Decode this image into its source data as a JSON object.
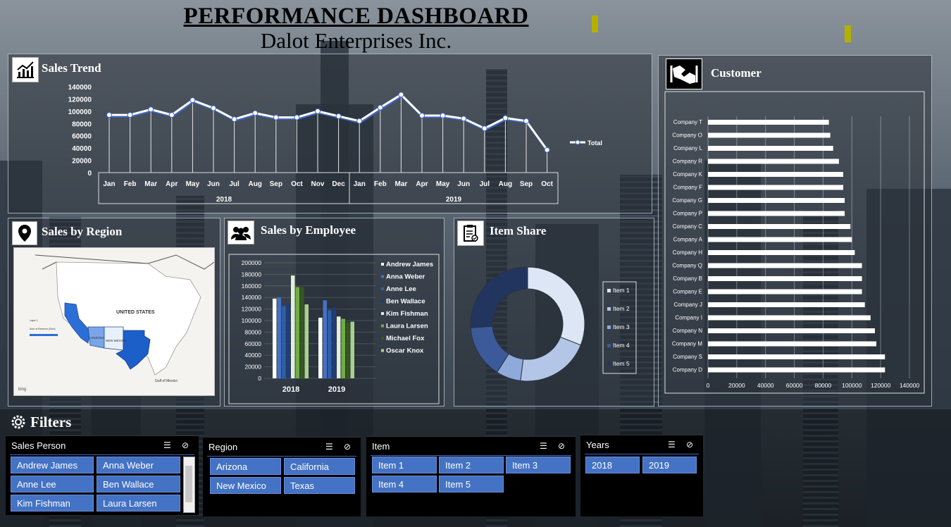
{
  "header": {
    "title": "PERFORMANCE DASHBOARD",
    "subtitle": "Dalot Enterprises Inc."
  },
  "sales_trend": {
    "title": "Sales Trend",
    "legend": "Total",
    "years": [
      "2018",
      "2019"
    ],
    "chart_data": {
      "type": "line",
      "categories": [
        "Jan",
        "Feb",
        "Mar",
        "Apr",
        "May",
        "Jun",
        "Jul",
        "Aug",
        "Sep",
        "Oct",
        "Nov",
        "Dec",
        "Jan",
        "Feb",
        "Mar",
        "Apr",
        "May",
        "Jun",
        "Jul",
        "Aug",
        "Sep",
        "Oct"
      ],
      "series": [
        {
          "name": "Total",
          "values": [
            94000,
            94000,
            103000,
            94000,
            118000,
            105000,
            87000,
            97000,
            90000,
            90000,
            100000,
            92000,
            84000,
            106000,
            127000,
            93000,
            93000,
            88000,
            72000,
            89000,
            84000,
            37000
          ]
        }
      ],
      "ylim": [
        0,
        140000
      ],
      "yticks": [
        "0",
        "20000",
        "40000",
        "60000",
        "80000",
        "100000",
        "120000",
        "140000"
      ]
    }
  },
  "customer": {
    "title": "Customer",
    "chart_data": {
      "type": "bar",
      "orientation": "horizontal",
      "categories": [
        "Company T",
        "Company O",
        "Company L",
        "Company R",
        "Company K",
        "Company F",
        "Company G",
        "Company P",
        "Company C",
        "Company A",
        "Company H",
        "Company Q",
        "Company B",
        "Company E",
        "Company J",
        "Company I",
        "Company N",
        "Company M",
        "Company S",
        "Company D"
      ],
      "values": [
        84000,
        85000,
        87000,
        91000,
        94000,
        94000,
        95000,
        95000,
        99000,
        100000,
        102000,
        107000,
        107000,
        107000,
        109000,
        113000,
        116000,
        117000,
        123000,
        123000
      ],
      "xlim": [
        0,
        140000
      ],
      "xticks": [
        "0",
        "20000",
        "40000",
        "60000",
        "80000",
        "100000",
        "120000",
        "140000"
      ]
    }
  },
  "region": {
    "title": "Sales by Region",
    "map_labels": {
      "country": "UNITED STATES",
      "highlighted": [
        "Arizona",
        "California",
        "New Mexico",
        "Texas"
      ],
      "sea": "Gulf of Mexico",
      "brand": "bing",
      "legend_title": "Layer 1",
      "legend_sub": "Sum of Revenue (Sum)"
    }
  },
  "employee": {
    "title": "Sales by Employee",
    "chart_data": {
      "type": "bar",
      "categories": [
        "2018",
        "2019"
      ],
      "series": [
        {
          "name": "Andrew James",
          "values": [
            138000,
            105000
          ]
        },
        {
          "name": "Anna Weber",
          "values": [
            140000,
            135000
          ]
        },
        {
          "name": "Anne Lee",
          "values": [
            125000,
            118000
          ]
        },
        {
          "name": "Ben Wallace",
          "values": [
            130000,
            122000
          ]
        },
        {
          "name": "Kim Fishman",
          "values": [
            178000,
            107000
          ]
        },
        {
          "name": "Laura Larsen",
          "values": [
            158000,
            103000
          ]
        },
        {
          "name": "Michael Fox",
          "values": [
            158000,
            97000
          ]
        },
        {
          "name": "Oscar Knox",
          "values": [
            128000,
            98000
          ]
        }
      ],
      "ylim": [
        0,
        200000
      ],
      "yticks": [
        "0",
        "20000",
        "40000",
        "60000",
        "80000",
        "100000",
        "120000",
        "140000",
        "160000",
        "180000",
        "200000"
      ]
    },
    "colors": [
      "#ffffff",
      "#4472c4",
      "#2e5fa8",
      "#1f3d7a",
      "#e2efd9",
      "#70ad47",
      "#375623",
      "#a9d08e"
    ]
  },
  "item_share": {
    "title": "Item Share",
    "chart_data": {
      "type": "pie",
      "categories": [
        "Item 1",
        "Item 2",
        "Item 3",
        "Item 4",
        "Item 5"
      ],
      "values": [
        31,
        21,
        7,
        15,
        26
      ]
    },
    "colors": [
      "#dde6f5",
      "#b4c6e7",
      "#8eaadb",
      "#3c5a99",
      "#22355f"
    ]
  },
  "filters": {
    "title": "Filters",
    "sales_person": {
      "label": "Sales Person",
      "items": [
        "Andrew James",
        "Anna Weber",
        "Anne Lee",
        "Ben Wallace",
        "Kim Fishman",
        "Laura Larsen"
      ]
    },
    "region": {
      "label": "Region",
      "items": [
        "Arizona",
        "California",
        "New Mexico",
        "Texas"
      ]
    },
    "item": {
      "label": "Item",
      "items": [
        "Item 1",
        "Item 2",
        "Item 3",
        "Item 4",
        "Item 5"
      ]
    },
    "years": {
      "label": "Years",
      "items": [
        "2018",
        "2019"
      ]
    }
  }
}
